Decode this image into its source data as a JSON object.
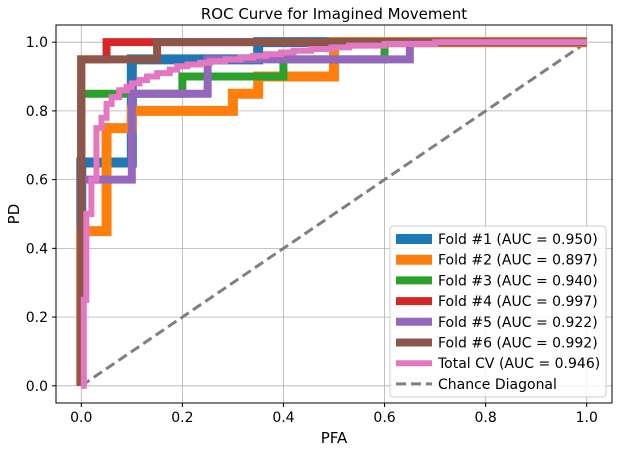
{
  "chart_data": {
    "type": "line",
    "title": "ROC Curve for Imagined Movement",
    "xlabel": "PFA",
    "ylabel": "PD",
    "xlim": [
      -0.05,
      1.05
    ],
    "ylim": [
      -0.05,
      1.05
    ],
    "xticks": [
      0.0,
      0.2,
      0.4,
      0.6,
      0.8,
      1.0
    ],
    "yticks": [
      0.0,
      0.2,
      0.4,
      0.6,
      0.8,
      1.0
    ],
    "xtick_labels": [
      "0.0",
      "0.2",
      "0.4",
      "0.6",
      "0.8",
      "1.0"
    ],
    "ytick_labels": [
      "0.0",
      "0.2",
      "0.4",
      "0.6",
      "0.8",
      "1.0"
    ],
    "grid": true,
    "legend_position": "lower-right",
    "series": [
      {
        "name": "Fold #1 (AUC = 0.950)",
        "color": "#1f77b4",
        "width": 10,
        "x": [
          0,
          0,
          0,
          0.1,
          0.1,
          0.35,
          0.35,
          1.0,
          1.0
        ],
        "y": [
          0,
          0.6,
          0.65,
          0.65,
          0.95,
          0.95,
          1.0,
          1.0,
          1.0
        ]
      },
      {
        "name": "Fold #2 (AUC = 0.897)",
        "color": "#ff7f0e",
        "width": 10,
        "x": [
          0,
          0,
          0.05,
          0.05,
          0.1,
          0.1,
          0.3,
          0.3,
          0.35,
          0.35,
          0.5,
          0.5,
          1.0
        ],
        "y": [
          0,
          0.45,
          0.45,
          0.75,
          0.75,
          0.8,
          0.8,
          0.85,
          0.85,
          0.9,
          0.9,
          1.0,
          1.0
        ]
      },
      {
        "name": "Fold #3 (AUC = 0.940)",
        "color": "#2ca02c",
        "width": 8,
        "x": [
          0,
          0,
          0.05,
          0.05,
          0.2,
          0.2,
          0.4,
          0.4,
          0.6,
          0.6,
          1.0
        ],
        "y": [
          0,
          0.85,
          0.85,
          0.85,
          0.85,
          0.9,
          0.9,
          0.95,
          0.95,
          1.0,
          1.0
        ]
      },
      {
        "name": "Fold #4 (AUC = 0.997)",
        "color": "#d62728",
        "width": 8,
        "x": [
          0,
          0,
          0.05,
          0.05,
          1.0
        ],
        "y": [
          0,
          0.95,
          0.95,
          1.0,
          1.0
        ]
      },
      {
        "name": "Fold #5 (AUC = 0.922)",
        "color": "#9467bd",
        "width": 8,
        "x": [
          0,
          0,
          0.1,
          0.1,
          0.25,
          0.25,
          0.65,
          0.65,
          1.0
        ],
        "y": [
          0,
          0.6,
          0.6,
          0.85,
          0.85,
          0.95,
          0.95,
          1.0,
          1.0
        ]
      },
      {
        "name": "Fold #6 (AUC = 0.992)",
        "color": "#8c564b",
        "width": 8,
        "x": [
          0,
          0,
          0.15,
          0.15,
          1.0
        ],
        "y": [
          0,
          0.95,
          0.95,
          1.0,
          1.0
        ]
      },
      {
        "name": "Total CV (AUC = 0.946)",
        "color": "#e377c2",
        "width": 6,
        "x": [
          0,
          0.005,
          0.005,
          0.01,
          0.01,
          0.02,
          0.02,
          0.03,
          0.03,
          0.04,
          0.04,
          0.05,
          0.05,
          0.06,
          0.06,
          0.075,
          0.075,
          0.09,
          0.09,
          0.1,
          0.1,
          0.115,
          0.115,
          0.13,
          0.13,
          0.15,
          0.15,
          0.175,
          0.175,
          0.19,
          0.19,
          0.21,
          0.21,
          0.235,
          0.235,
          0.255,
          0.255,
          0.285,
          0.285,
          0.315,
          0.315,
          0.34,
          0.34,
          0.365,
          0.365,
          0.395,
          0.395,
          0.42,
          0.42,
          0.455,
          0.455,
          0.495,
          0.495,
          0.53,
          0.53,
          0.6,
          0.6,
          0.7,
          0.7,
          0.8,
          0.8,
          1.0
        ],
        "y": [
          0,
          0,
          0.25,
          0.25,
          0.5,
          0.5,
          0.6,
          0.6,
          0.75,
          0.75,
          0.78,
          0.78,
          0.82,
          0.82,
          0.84,
          0.84,
          0.86,
          0.86,
          0.87,
          0.87,
          0.88,
          0.88,
          0.89,
          0.89,
          0.9,
          0.9,
          0.91,
          0.91,
          0.92,
          0.92,
          0.93,
          0.93,
          0.935,
          0.935,
          0.94,
          0.94,
          0.945,
          0.945,
          0.95,
          0.95,
          0.955,
          0.955,
          0.96,
          0.96,
          0.965,
          0.965,
          0.97,
          0.97,
          0.975,
          0.975,
          0.98,
          0.98,
          0.985,
          0.985,
          0.99,
          0.99,
          0.995,
          0.995,
          1.0,
          1.0,
          1.0,
          1.0
        ]
      },
      {
        "name": "Chance Diagonal",
        "color": "#808080",
        "width": 3,
        "dashed": true,
        "x": [
          0,
          1.0
        ],
        "y": [
          0,
          1.0
        ]
      }
    ]
  }
}
